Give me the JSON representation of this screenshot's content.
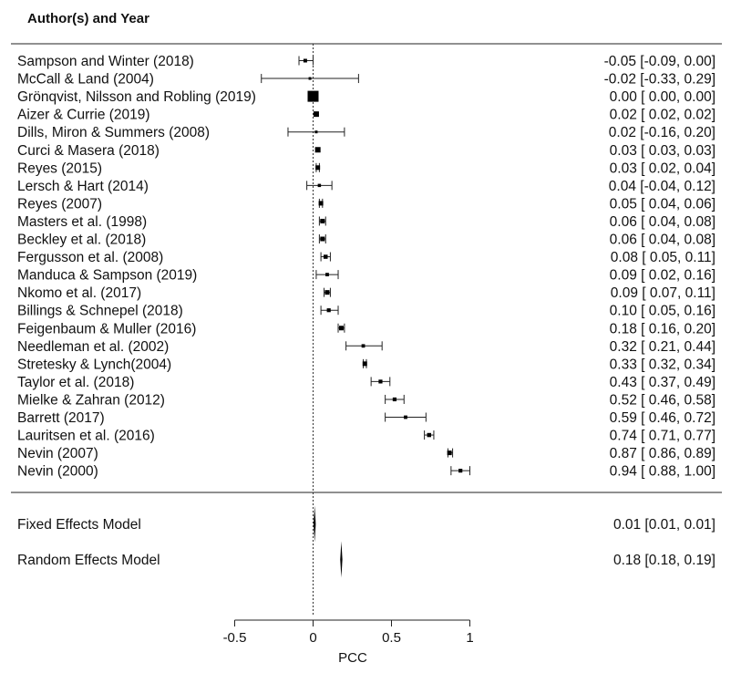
{
  "header": {
    "title": "Author(s) and Year"
  },
  "chart_data": {
    "type": "forest",
    "title": "",
    "xlabel": "PCC",
    "xticks": [
      -0.5,
      0,
      0.5,
      1
    ],
    "xtick_labels": [
      "-0.5",
      "0",
      "0.5",
      "1"
    ],
    "reference_line": 0,
    "studies": [
      {
        "label": "Sampson and Winter (2018)",
        "est": -0.05,
        "lo": -0.09,
        "hi": 0.0,
        "ci_text": "-0.05 [-0.09, 0.00]",
        "weight": 2
      },
      {
        "label": "McCall & Land (2004)",
        "est": -0.02,
        "lo": -0.33,
        "hi": 0.29,
        "ci_text": "-0.02 [-0.33, 0.29]",
        "weight": 1
      },
      {
        "label": "Grönqvist, Nilsson and Robling (2019)",
        "est": 0.0,
        "lo": 0.0,
        "hi": 0.0,
        "ci_text": "0.00 [ 0.00, 0.00]",
        "weight": 10
      },
      {
        "label": "Aizer & Currie (2019)",
        "est": 0.02,
        "lo": 0.02,
        "hi": 0.02,
        "ci_text": "0.02 [ 0.02, 0.02]",
        "weight": 4
      },
      {
        "label": "Dills, Miron & Summers (2008)",
        "est": 0.02,
        "lo": -0.16,
        "hi": 0.2,
        "ci_text": "0.02 [-0.16, 0.20]",
        "weight": 1
      },
      {
        "label": "Curci & Masera (2018)",
        "est": 0.03,
        "lo": 0.03,
        "hi": 0.03,
        "ci_text": "0.03 [ 0.03, 0.03]",
        "weight": 4
      },
      {
        "label": "Reyes (2015)",
        "est": 0.03,
        "lo": 0.02,
        "hi": 0.04,
        "ci_text": "0.03 [ 0.02, 0.04]",
        "weight": 3
      },
      {
        "label": "Lersch & Hart (2014)",
        "est": 0.04,
        "lo": -0.04,
        "hi": 0.12,
        "ci_text": "0.04 [-0.04, 0.12]",
        "weight": 1.5
      },
      {
        "label": "Reyes (2007)",
        "est": 0.05,
        "lo": 0.04,
        "hi": 0.06,
        "ci_text": "0.05 [ 0.04, 0.06]",
        "weight": 3
      },
      {
        "label": "Masters et al. (1998)",
        "est": 0.06,
        "lo": 0.04,
        "hi": 0.08,
        "ci_text": "0.06 [ 0.04, 0.08]",
        "weight": 3
      },
      {
        "label": "Beckley et al. (2018)",
        "est": 0.06,
        "lo": 0.04,
        "hi": 0.08,
        "ci_text": "0.06 [ 0.04, 0.08]",
        "weight": 3
      },
      {
        "label": "Fergusson et al. (2008)",
        "est": 0.08,
        "lo": 0.05,
        "hi": 0.11,
        "ci_text": "0.08 [ 0.05, 0.11]",
        "weight": 2.5
      },
      {
        "label": "Manduca & Sampson (2019)",
        "est": 0.09,
        "lo": 0.02,
        "hi": 0.16,
        "ci_text": "0.09 [ 0.02, 0.16]",
        "weight": 1.8
      },
      {
        "label": "Nkomo et al. (2017)",
        "est": 0.09,
        "lo": 0.07,
        "hi": 0.11,
        "ci_text": "0.09 [ 0.07, 0.11]",
        "weight": 3
      },
      {
        "label": "Billings & Schnepel (2018)",
        "est": 0.1,
        "lo": 0.05,
        "hi": 0.16,
        "ci_text": "0.10 [ 0.05, 0.16]",
        "weight": 2.2
      },
      {
        "label": "Feigenbaum & Muller (2016)",
        "est": 0.18,
        "lo": 0.16,
        "hi": 0.2,
        "ci_text": "0.18 [ 0.16, 0.20]",
        "weight": 3
      },
      {
        "label": "Needleman et al. (2002)",
        "est": 0.32,
        "lo": 0.21,
        "hi": 0.44,
        "ci_text": "0.32 [ 0.21, 0.44]",
        "weight": 1.8
      },
      {
        "label": "Stretesky & Lynch(2004)",
        "est": 0.33,
        "lo": 0.32,
        "hi": 0.34,
        "ci_text": "0.33 [ 0.32, 0.34]",
        "weight": 3
      },
      {
        "label": "Taylor et al. (2018)",
        "est": 0.43,
        "lo": 0.37,
        "hi": 0.49,
        "ci_text": "0.43 [ 0.37, 0.49]",
        "weight": 2.2
      },
      {
        "label": "Mielke & Zahran (2012)",
        "est": 0.52,
        "lo": 0.46,
        "hi": 0.58,
        "ci_text": "0.52 [ 0.46, 0.58]",
        "weight": 2.2
      },
      {
        "label": "Barrett (2017)",
        "est": 0.59,
        "lo": 0.46,
        "hi": 0.72,
        "ci_text": "0.59 [ 0.46, 0.72]",
        "weight": 1.8
      },
      {
        "label": "Lauritsen et al. (2016)",
        "est": 0.74,
        "lo": 0.71,
        "hi": 0.77,
        "ci_text": "0.74 [ 0.71, 0.77]",
        "weight": 2.5
      },
      {
        "label": "Nevin (2007)",
        "est": 0.87,
        "lo": 0.86,
        "hi": 0.89,
        "ci_text": "0.87 [ 0.86, 0.89]",
        "weight": 3
      },
      {
        "label": "Nevin (2000)",
        "est": 0.94,
        "lo": 0.88,
        "hi": 1.0,
        "ci_text": "0.94 [ 0.88, 1.00]",
        "weight": 2.2
      }
    ],
    "models": [
      {
        "label": "Fixed Effects Model",
        "est": 0.01,
        "lo": 0.01,
        "hi": 0.01,
        "ci_text": "0.01 [0.01, 0.01]"
      },
      {
        "label": "Random Effects Model",
        "est": 0.18,
        "lo": 0.18,
        "hi": 0.19,
        "ci_text": "0.18 [0.18, 0.19]"
      }
    ]
  }
}
